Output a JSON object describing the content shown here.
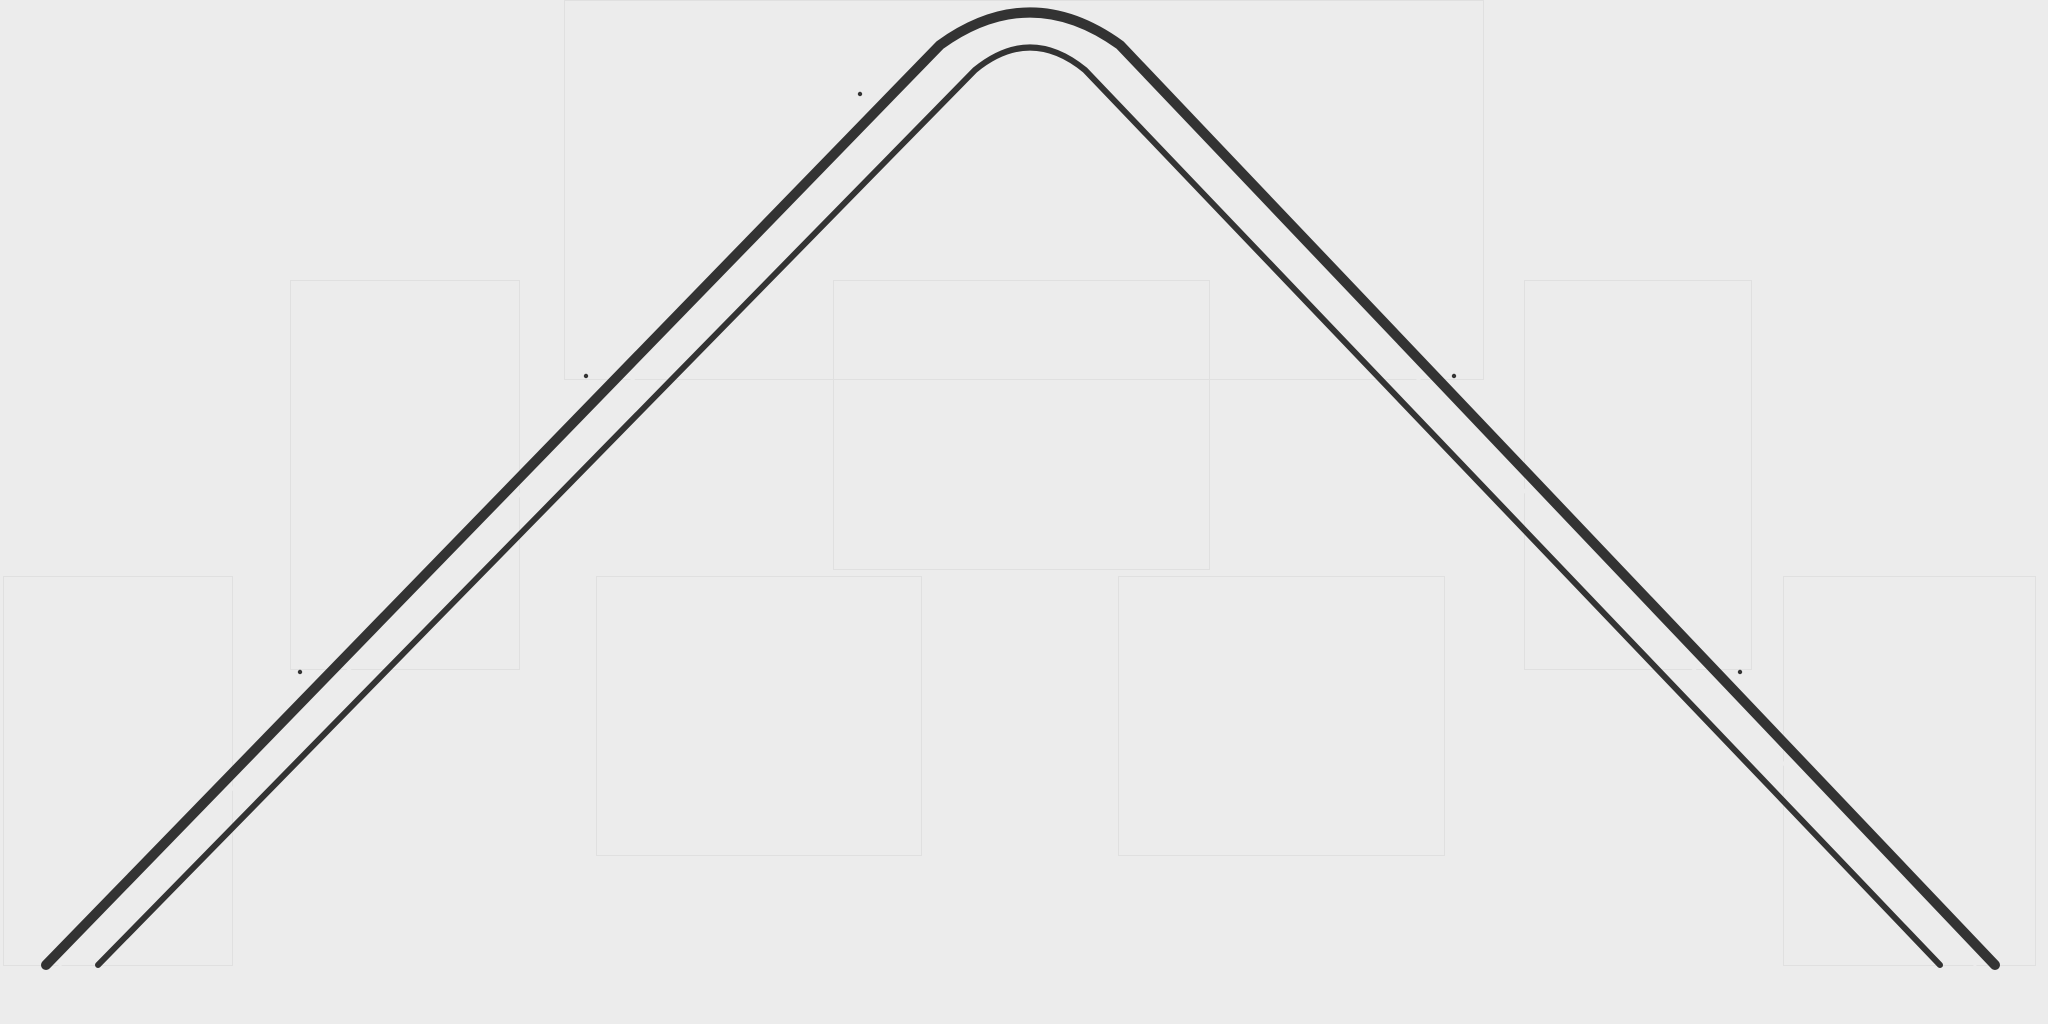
{
  "scene": {
    "background_color": "#ececec",
    "stroke_color": "#333333",
    "panel_border_color": "#e0e0e0",
    "description_shapes": [
      "outer-arch",
      "inner-arch",
      "reference-dot"
    ]
  }
}
